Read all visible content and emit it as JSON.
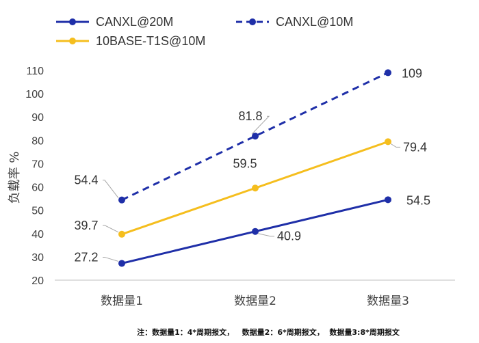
{
  "chart_data": {
    "type": "line",
    "title": "",
    "xlabel": "",
    "ylabel": "负载率 %",
    "ylim": [
      20,
      110
    ],
    "yticks": [
      20,
      30,
      40,
      50,
      60,
      70,
      80,
      90,
      100,
      110
    ],
    "categories": [
      "数据量1",
      "数据量2",
      "数据量3"
    ],
    "series": [
      {
        "name": "CANXL@20M",
        "values": [
          27.2,
          40.9,
          54.5
        ],
        "labels": [
          "27.2",
          "40.9",
          "54.5"
        ],
        "color": "#1f2fa8",
        "dash": false
      },
      {
        "name": "CANXL@10M",
        "values": [
          54.4,
          81.8,
          109
        ],
        "labels": [
          "54.4",
          "81.8",
          "109"
        ],
        "color": "#1f2fa8",
        "dash": true
      },
      {
        "name": "10BASE-T1S@10M",
        "values": [
          39.7,
          59.5,
          79.4
        ],
        "labels": [
          "39.7",
          "59.5",
          "79.4"
        ],
        "color": "#f5be1e",
        "dash": false
      }
    ],
    "legend_position": "top-left",
    "grid": false,
    "footnote": "注：数据量1：4*周期报文，   数据量2：6*周期报文，  数据量3:8*周期报文"
  }
}
